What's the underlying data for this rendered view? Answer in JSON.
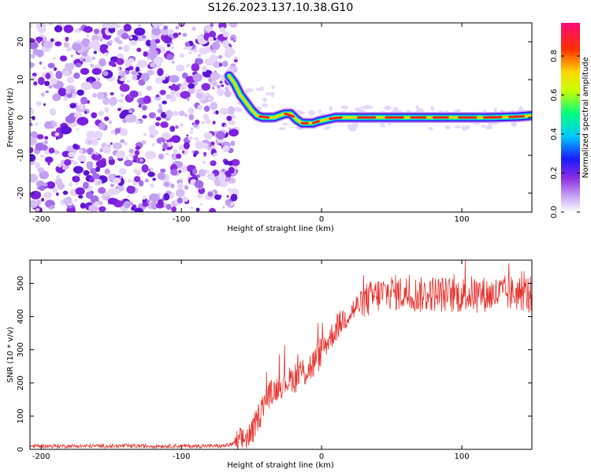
{
  "figure": {
    "title": "S126.2023.137.10.38.G10"
  },
  "chart_data": [
    {
      "type": "heatmap",
      "xlabel": "Height of straight line (km)",
      "ylabel": "Frequency (Hz)",
      "xlim": [
        -208,
        150
      ],
      "ylim": [
        -25,
        25
      ],
      "xticks": [
        -200,
        -100,
        0,
        100
      ],
      "yticks": [
        -20,
        -10,
        0,
        10,
        20
      ],
      "noise_region_x": [
        -208,
        -64
      ],
      "ridge": {
        "x": [
          -66,
          -62,
          -58,
          -54,
          -50,
          -46,
          -42,
          -38,
          -34,
          -30,
          -26,
          -22,
          -18,
          -14,
          -10,
          -6,
          -2,
          4,
          10,
          20,
          40,
          60,
          80,
          100,
          120,
          140,
          150
        ],
        "y": [
          11,
          9,
          6,
          4,
          2,
          0.5,
          0,
          0,
          0,
          0.5,
          1,
          1,
          -0.5,
          -1.5,
          -1.5,
          -1.5,
          -1,
          -0.5,
          0,
          0,
          0,
          0,
          0,
          0,
          0,
          0.2,
          0.5
        ]
      },
      "colorbar": {
        "label": "Normalized spectral amplitude",
        "range": [
          0,
          0.97
        ],
        "ticks": [
          0.0,
          0.2,
          0.4,
          0.6,
          0.8
        ]
      }
    },
    {
      "type": "line",
      "xlabel": "Height of straight line (km)",
      "ylabel": "SNR (10 * v/v)",
      "xlim": [
        -208,
        150
      ],
      "ylim": [
        0,
        570
      ],
      "xticks": [
        -200,
        -100,
        0,
        100
      ],
      "yticks": [
        0,
        100,
        200,
        300,
        400,
        500
      ],
      "color": "#e8302a",
      "series": [
        {
          "x": [
            -208,
            -180,
            -150,
            -120,
            -90,
            -70,
            -60,
            -50,
            -45,
            -40,
            -35,
            -30,
            -25,
            -20,
            -15,
            -10,
            -5,
            0,
            5,
            10,
            15,
            20,
            25,
            30,
            35,
            40,
            45,
            50,
            55,
            60,
            70,
            80,
            90,
            100,
            110,
            120,
            130,
            140,
            150
          ],
          "values": [
            10,
            10,
            10,
            10,
            10,
            10,
            20,
            45,
            100,
            150,
            175,
            190,
            205,
            215,
            230,
            240,
            260,
            300,
            330,
            360,
            390,
            410,
            430,
            445,
            455,
            465,
            470,
            475,
            470,
            470,
            465,
            470,
            465,
            465,
            470,
            465,
            470,
            470,
            470
          ]
        }
      ]
    }
  ]
}
